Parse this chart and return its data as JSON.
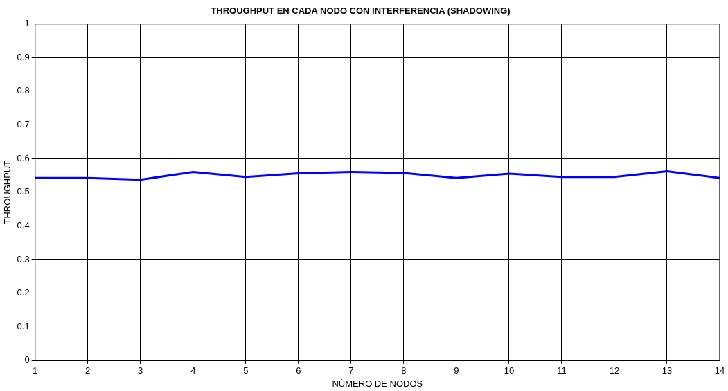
{
  "chart_data": {
    "type": "line",
    "title": "THROUGHPUT EN CADA NODO CON INTERFERENCIA (SHADOWING)",
    "xlabel": "NÚMERO DE NODOS",
    "ylabel": "THROUGHPUT",
    "x": [
      1,
      2,
      3,
      4,
      5,
      6,
      7,
      8,
      9,
      10,
      11,
      12,
      13,
      14
    ],
    "series": [
      {
        "color": "#0000ff",
        "values": [
          0.542,
          0.542,
          0.537,
          0.56,
          0.545,
          0.556,
          0.56,
          0.557,
          0.542,
          0.555,
          0.545,
          0.545,
          0.562,
          0.542
        ]
      }
    ],
    "xlim": [
      1,
      14
    ],
    "xticks": [
      1,
      2,
      3,
      4,
      5,
      6,
      7,
      8,
      9,
      10,
      11,
      12,
      13,
      14
    ],
    "ylim": [
      0,
      1
    ],
    "yticks": [
      0,
      0.1,
      0.2,
      0.3,
      0.4,
      0.5,
      0.6,
      0.7,
      0.8,
      0.9,
      1
    ],
    "grid": true,
    "legend": false,
    "marker": "none",
    "line_style": "solid"
  }
}
